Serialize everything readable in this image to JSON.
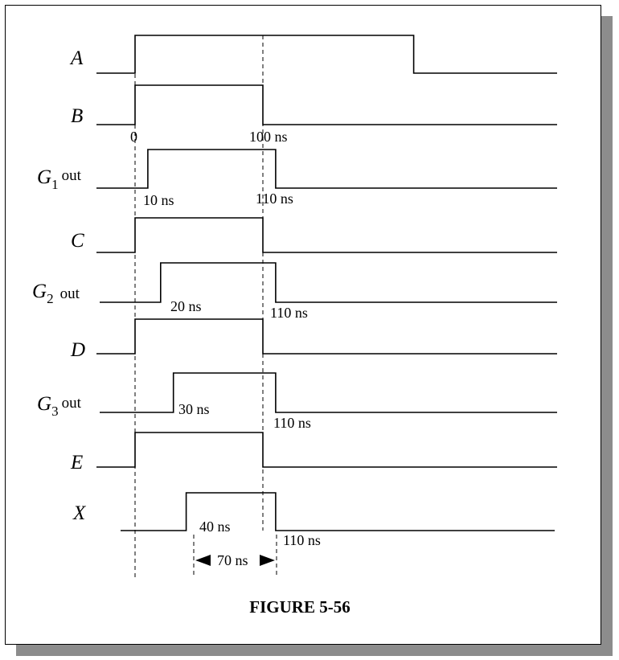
{
  "figure": {
    "caption": "FIGURE 5-56"
  },
  "signals": [
    {
      "id": "A",
      "label": "A",
      "sub": "",
      "suffix": "",
      "high_ns": [
        0,
        218
      ]
    },
    {
      "id": "B",
      "label": "B",
      "sub": "",
      "suffix": "",
      "high_ns": [
        0,
        100
      ]
    },
    {
      "id": "G1",
      "label": "G",
      "sub": "1",
      "suffix": "out",
      "high_ns": [
        10,
        110
      ]
    },
    {
      "id": "C",
      "label": "C",
      "sub": "",
      "suffix": "",
      "high_ns": [
        0,
        100
      ]
    },
    {
      "id": "G2",
      "label": "G",
      "sub": "2",
      "suffix": "out",
      "high_ns": [
        20,
        110
      ]
    },
    {
      "id": "D",
      "label": "D",
      "sub": "",
      "suffix": "",
      "high_ns": [
        0,
        100
      ]
    },
    {
      "id": "G3",
      "label": "G",
      "sub": "3",
      "suffix": "out",
      "high_ns": [
        30,
        110
      ]
    },
    {
      "id": "E",
      "label": "E",
      "sub": "",
      "suffix": "",
      "high_ns": [
        0,
        100
      ]
    },
    {
      "id": "X",
      "label": "X",
      "sub": "",
      "suffix": "",
      "high_ns": [
        40,
        110
      ]
    }
  ],
  "annotations": {
    "zero": "0",
    "b_fall": "100 ns",
    "g1_rise": "10 ns",
    "g1_fall": "110 ns",
    "g2_rise": "20 ns",
    "g2_fall": "110 ns",
    "g3_rise": "30 ns",
    "g3_fall": "110 ns",
    "x_rise": "40 ns",
    "x_fall": "110 ns",
    "width": "70 ns"
  }
}
